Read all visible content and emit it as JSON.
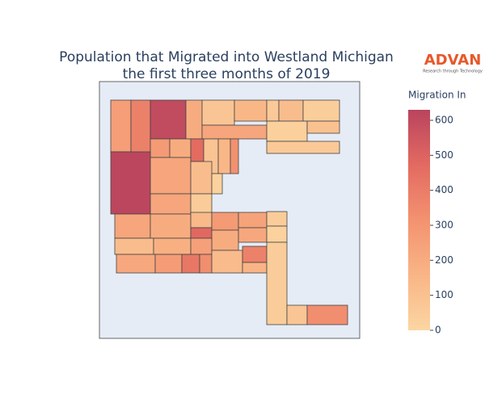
{
  "chart_data": {
    "type": "choropleth",
    "title": [
      "Population that Migrated into Westland Michigan",
      "the first three months of 2019"
    ],
    "logo": {
      "name": "ADVAN",
      "tagline": "Research through Technology"
    },
    "colorbar_title": "Migration In",
    "colorscale": [
      "#fbd6a2",
      "#f9b586",
      "#f39270",
      "#e36a61",
      "#b9445e"
    ],
    "ylim": [
      0,
      630
    ],
    "yticks": [
      0,
      100,
      200,
      300,
      400,
      500,
      600
    ],
    "values": [
      260,
      380,
      600,
      200,
      80,
      150,
      60,
      120,
      40,
      230,
      30,
      100,
      60,
      280,
      200,
      470,
      90,
      150,
      320,
      620,
      230,
      120,
      20,
      230,
      50,
      230,
      200,
      140,
      280,
      240,
      50,
      480,
      200,
      220,
      20,
      120,
      180,
      250,
      220,
      270,
      420,
      330,
      130,
      380,
      160,
      50,
      80,
      330
    ]
  }
}
